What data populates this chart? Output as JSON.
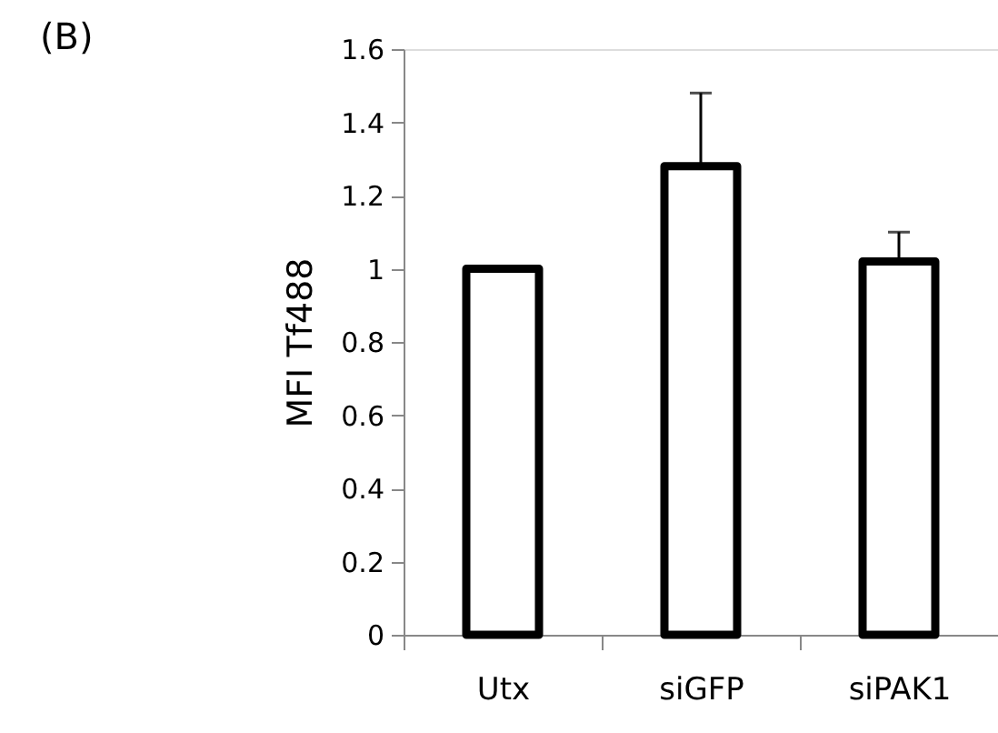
{
  "chart_data": {
    "type": "bar",
    "ylabel": "MFI Tf488",
    "annotations": [
      "(B)"
    ],
    "categories": [
      "Utx",
      "siGFP",
      "siPAK1"
    ],
    "values": [
      1.0,
      1.28,
      1.02
    ],
    "errors": [
      null,
      [
        1.28,
        1.48
      ],
      [
        1.02,
        1.1
      ]
    ],
    "color": "#ffffff",
    "ylim": [
      0,
      1.6
    ],
    "yticks": [
      0,
      0.2,
      0.4,
      0.6,
      0.8,
      1,
      1.2,
      1.4,
      1.6
    ],
    "grid": false
  }
}
